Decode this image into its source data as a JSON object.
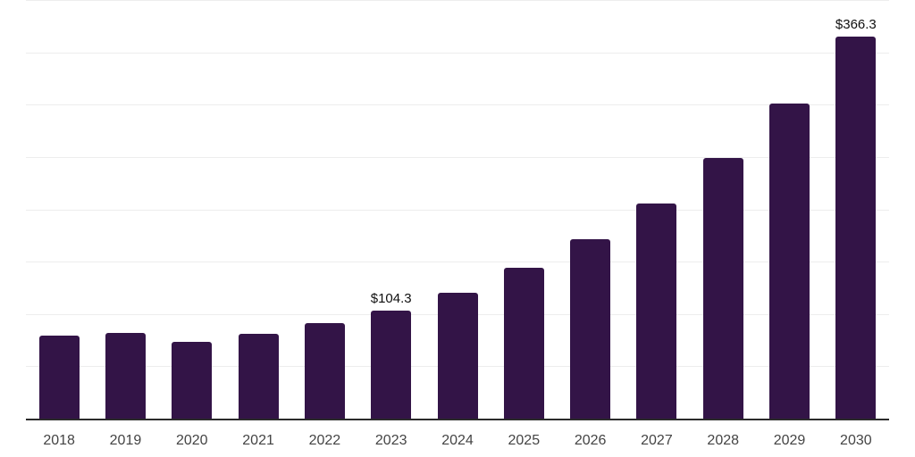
{
  "chart_style": {
    "background_color": "#ffffff",
    "bar_color": "#331447",
    "grid_color": "#ededed",
    "axis_color": "#2b2b2b",
    "tick_label_color": "#444444",
    "data_label_color": "#0f0f0f"
  },
  "chart_data": {
    "type": "bar",
    "title": "",
    "xlabel": "",
    "ylabel": "",
    "legend": "none",
    "grid": "horizontal",
    "ylim": [
      0,
      400
    ],
    "gridline_step": 50,
    "categories": [
      "2018",
      "2019",
      "2020",
      "2021",
      "2022",
      "2023",
      "2024",
      "2025",
      "2026",
      "2027",
      "2028",
      "2029",
      "2030"
    ],
    "values": [
      80.5,
      83.0,
      74.0,
      82.0,
      92.0,
      104.3,
      121.5,
      145.0,
      172.5,
      206.5,
      249.5,
      302.0,
      366.3
    ],
    "data_labels": [
      "",
      "",
      "",
      "",
      "",
      "$104.3",
      "",
      "",
      "",
      "",
      "",
      "",
      "$366.3"
    ]
  }
}
